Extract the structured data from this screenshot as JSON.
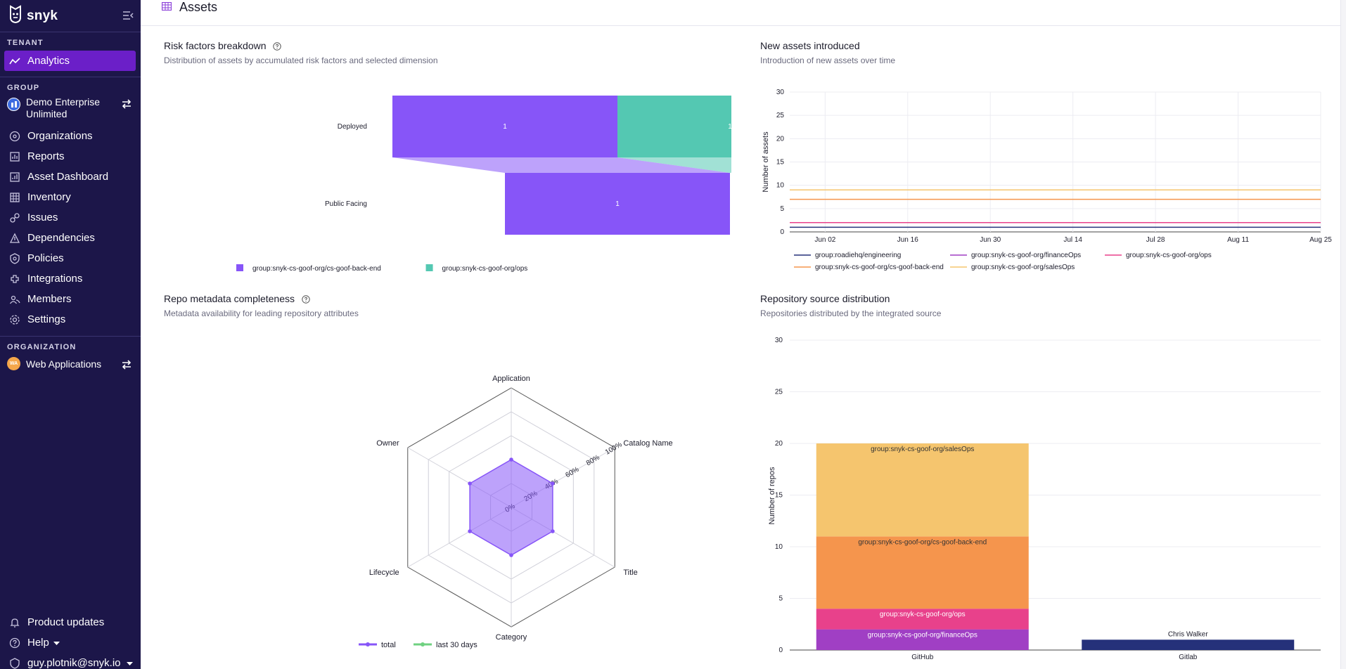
{
  "brand": {
    "name": "snyk"
  },
  "sidebar": {
    "tenant_label": "TENANT",
    "analytics": "Analytics",
    "group_label": "GROUP",
    "group_name_line1": "Demo Enterprise",
    "group_name_line2": "Unlimited",
    "items": [
      {
        "label": "Organizations",
        "icon": "organizations-icon"
      },
      {
        "label": "Reports",
        "icon": "reports-icon"
      },
      {
        "label": "Asset Dashboard",
        "icon": "asset-dashboard-icon"
      },
      {
        "label": "Inventory",
        "icon": "inventory-icon"
      },
      {
        "label": "Issues",
        "icon": "issues-icon"
      },
      {
        "label": "Dependencies",
        "icon": "dependencies-icon"
      },
      {
        "label": "Policies",
        "icon": "policies-icon"
      },
      {
        "label": "Integrations",
        "icon": "integrations-icon"
      },
      {
        "label": "Members",
        "icon": "members-icon"
      },
      {
        "label": "Settings",
        "icon": "settings-icon"
      }
    ],
    "org_label": "ORGANIZATION",
    "org_avatar": "WA",
    "org_name": "Web Applications",
    "product_updates": "Product updates",
    "help": "Help",
    "user": "guy.plotnik@snyk.io"
  },
  "page": {
    "title": "Assets"
  },
  "cards": {
    "risk": {
      "title": "Risk factors breakdown",
      "subtitle": "Distribution of assets by accumulated risk factors and selected dimension"
    },
    "new_assets": {
      "title": "New assets introduced",
      "subtitle": "Introduction of new assets over time"
    },
    "repo_meta": {
      "title": "Repo metadata completeness",
      "subtitle": "Metadata availability for leading repository attributes"
    },
    "repo_source": {
      "title": "Repository source distribution",
      "subtitle": "Repositories distributed by the integrated source"
    }
  },
  "colors": {
    "sidebar_bg": "#1c1649",
    "accent": "#6b1fc8",
    "purple": "#8755f8",
    "teal": "#54c8b2",
    "navy": "#25317a",
    "violet": "#a03fc4",
    "pink": "#e8418b",
    "orange": "#f5954d",
    "yellow": "#f5c56e"
  },
  "chart_data": [
    {
      "id": "risk",
      "type": "bar",
      "title": "Risk factors breakdown",
      "categories": [
        "Deployed",
        "Public Facing"
      ],
      "series": [
        {
          "name": "group:snyk-cs-goof-org/cs-goof-back-end",
          "values": [
            1,
            1
          ],
          "color": "#8755f8"
        },
        {
          "name": "group:snyk-cs-goof-org/ops",
          "values": [
            1,
            0
          ],
          "color": "#54c8b2"
        }
      ],
      "legend": "bottom"
    },
    {
      "id": "new_assets",
      "type": "line",
      "title": "New assets introduced",
      "ylabel": "Number of assets",
      "ylim": [
        0,
        30
      ],
      "yticks": [
        0,
        5,
        10,
        15,
        20,
        25,
        30
      ],
      "xlim": [
        "2024-05-27",
        "2024-08-25"
      ],
      "xticks": [
        "2024-06-02",
        "2024-06-16",
        "2024-06-30",
        "2024-07-14",
        "2024-07-28",
        "2024-08-11",
        "2024-08-25"
      ],
      "xticklabels": [
        "Jun 02",
        "Jun 16",
        "Jun 30",
        "Jul 14",
        "Jul 28",
        "Aug 11",
        "Aug 25"
      ],
      "series": [
        {
          "name": "group:roadiehq/engineering",
          "value": 1,
          "color": "#25317a"
        },
        {
          "name": "group:snyk-cs-goof-org/financeOps",
          "value": 2,
          "color": "#a03fc4"
        },
        {
          "name": "group:snyk-cs-goof-org/ops",
          "value": 2,
          "color": "#e8418b"
        },
        {
          "name": "group:snyk-cs-goof-org/cs-goof-back-end",
          "value": 7,
          "color": "#f5954d"
        },
        {
          "name": "group:snyk-cs-goof-org/salesOps",
          "value": 9,
          "color": "#f5c56e"
        }
      ],
      "grid": true,
      "legend": "bottom"
    },
    {
      "id": "repo_meta",
      "type": "radar",
      "title": "Repo metadata completeness",
      "axes": [
        "Application",
        "Catalog Name",
        "Title",
        "Category",
        "Lifecycle",
        "Owner"
      ],
      "rticks": [
        0,
        20,
        40,
        60,
        80,
        100
      ],
      "rticklabels": [
        "0%",
        "20%",
        "40%",
        "60%",
        "80%",
        "100%"
      ],
      "series": [
        {
          "name": "total",
          "values": [
            40,
            40,
            40,
            40,
            40,
            40
          ],
          "color": "#8755f8"
        },
        {
          "name": "last 30 days",
          "values": [
            0,
            0,
            0,
            0,
            0,
            0
          ],
          "color": "#6fd181"
        }
      ],
      "legend": "bottom-left"
    },
    {
      "id": "repo_source",
      "type": "bar",
      "stacked": true,
      "title": "Repository source distribution",
      "ylabel": "Number of repos",
      "ylim": [
        0,
        30
      ],
      "yticks": [
        0,
        5,
        10,
        15,
        20,
        25,
        30
      ],
      "categories": [
        "GitHub",
        "Gitlab"
      ],
      "series": [
        {
          "name": "group:snyk-cs-goof-org/financeOps",
          "values": [
            2,
            0
          ],
          "color": "#a03fc4"
        },
        {
          "name": "group:snyk-cs-goof-org/ops",
          "values": [
            2,
            0
          ],
          "color": "#e8418b"
        },
        {
          "name": "group:snyk-cs-goof-org/cs-goof-back-end",
          "values": [
            7,
            0
          ],
          "color": "#f5954d"
        },
        {
          "name": "group:snyk-cs-goof-org/salesOps",
          "values": [
            9,
            0
          ],
          "color": "#f5c56e"
        },
        {
          "name": "Chris Walker",
          "values": [
            0,
            1
          ],
          "color": "#25317a"
        }
      ],
      "grid": true
    }
  ]
}
